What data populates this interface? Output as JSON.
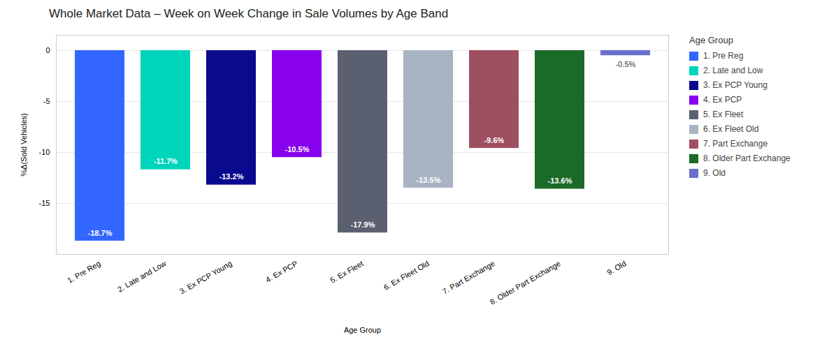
{
  "chart_data": {
    "type": "bar",
    "title": "Whole Market Data – Week on Week Change in Sale Volumes by Age Band",
    "xlabel": "Age Group",
    "ylabel": "%Δ(Sold Vehicles)",
    "categories": [
      "1. Pre Reg",
      "2. Late and Low",
      "3. Ex PCP Young",
      "4. Ex PCP",
      "5. Ex Fleet",
      "6. Ex Fleet Old",
      "7. Part Exchange",
      "8. Older Part Exchange",
      "9. Old"
    ],
    "values": [
      -18.7,
      -11.7,
      -13.2,
      -10.5,
      -17.9,
      -13.5,
      -9.6,
      -13.6,
      -0.5
    ],
    "value_labels": [
      "-18.7%",
      "-11.7%",
      "-13.2%",
      "-10.5%",
      "-17.9%",
      "-13.5%",
      "-9.6%",
      "-13.6%",
      "-0.5%"
    ],
    "colors": [
      "#3366FF",
      "#00D4BB",
      "#0A0A8E",
      "#8800EE",
      "#5A6070",
      "#A8B4C4",
      "#9E4F60",
      "#1B6B28",
      "#6B70CC"
    ],
    "data_labels": true,
    "legend": "right",
    "legend_title": "Age Group",
    "ylim": [
      -20,
      1.5
    ],
    "yticks": [
      0,
      -5,
      -10,
      -15
    ],
    "grid": true
  }
}
